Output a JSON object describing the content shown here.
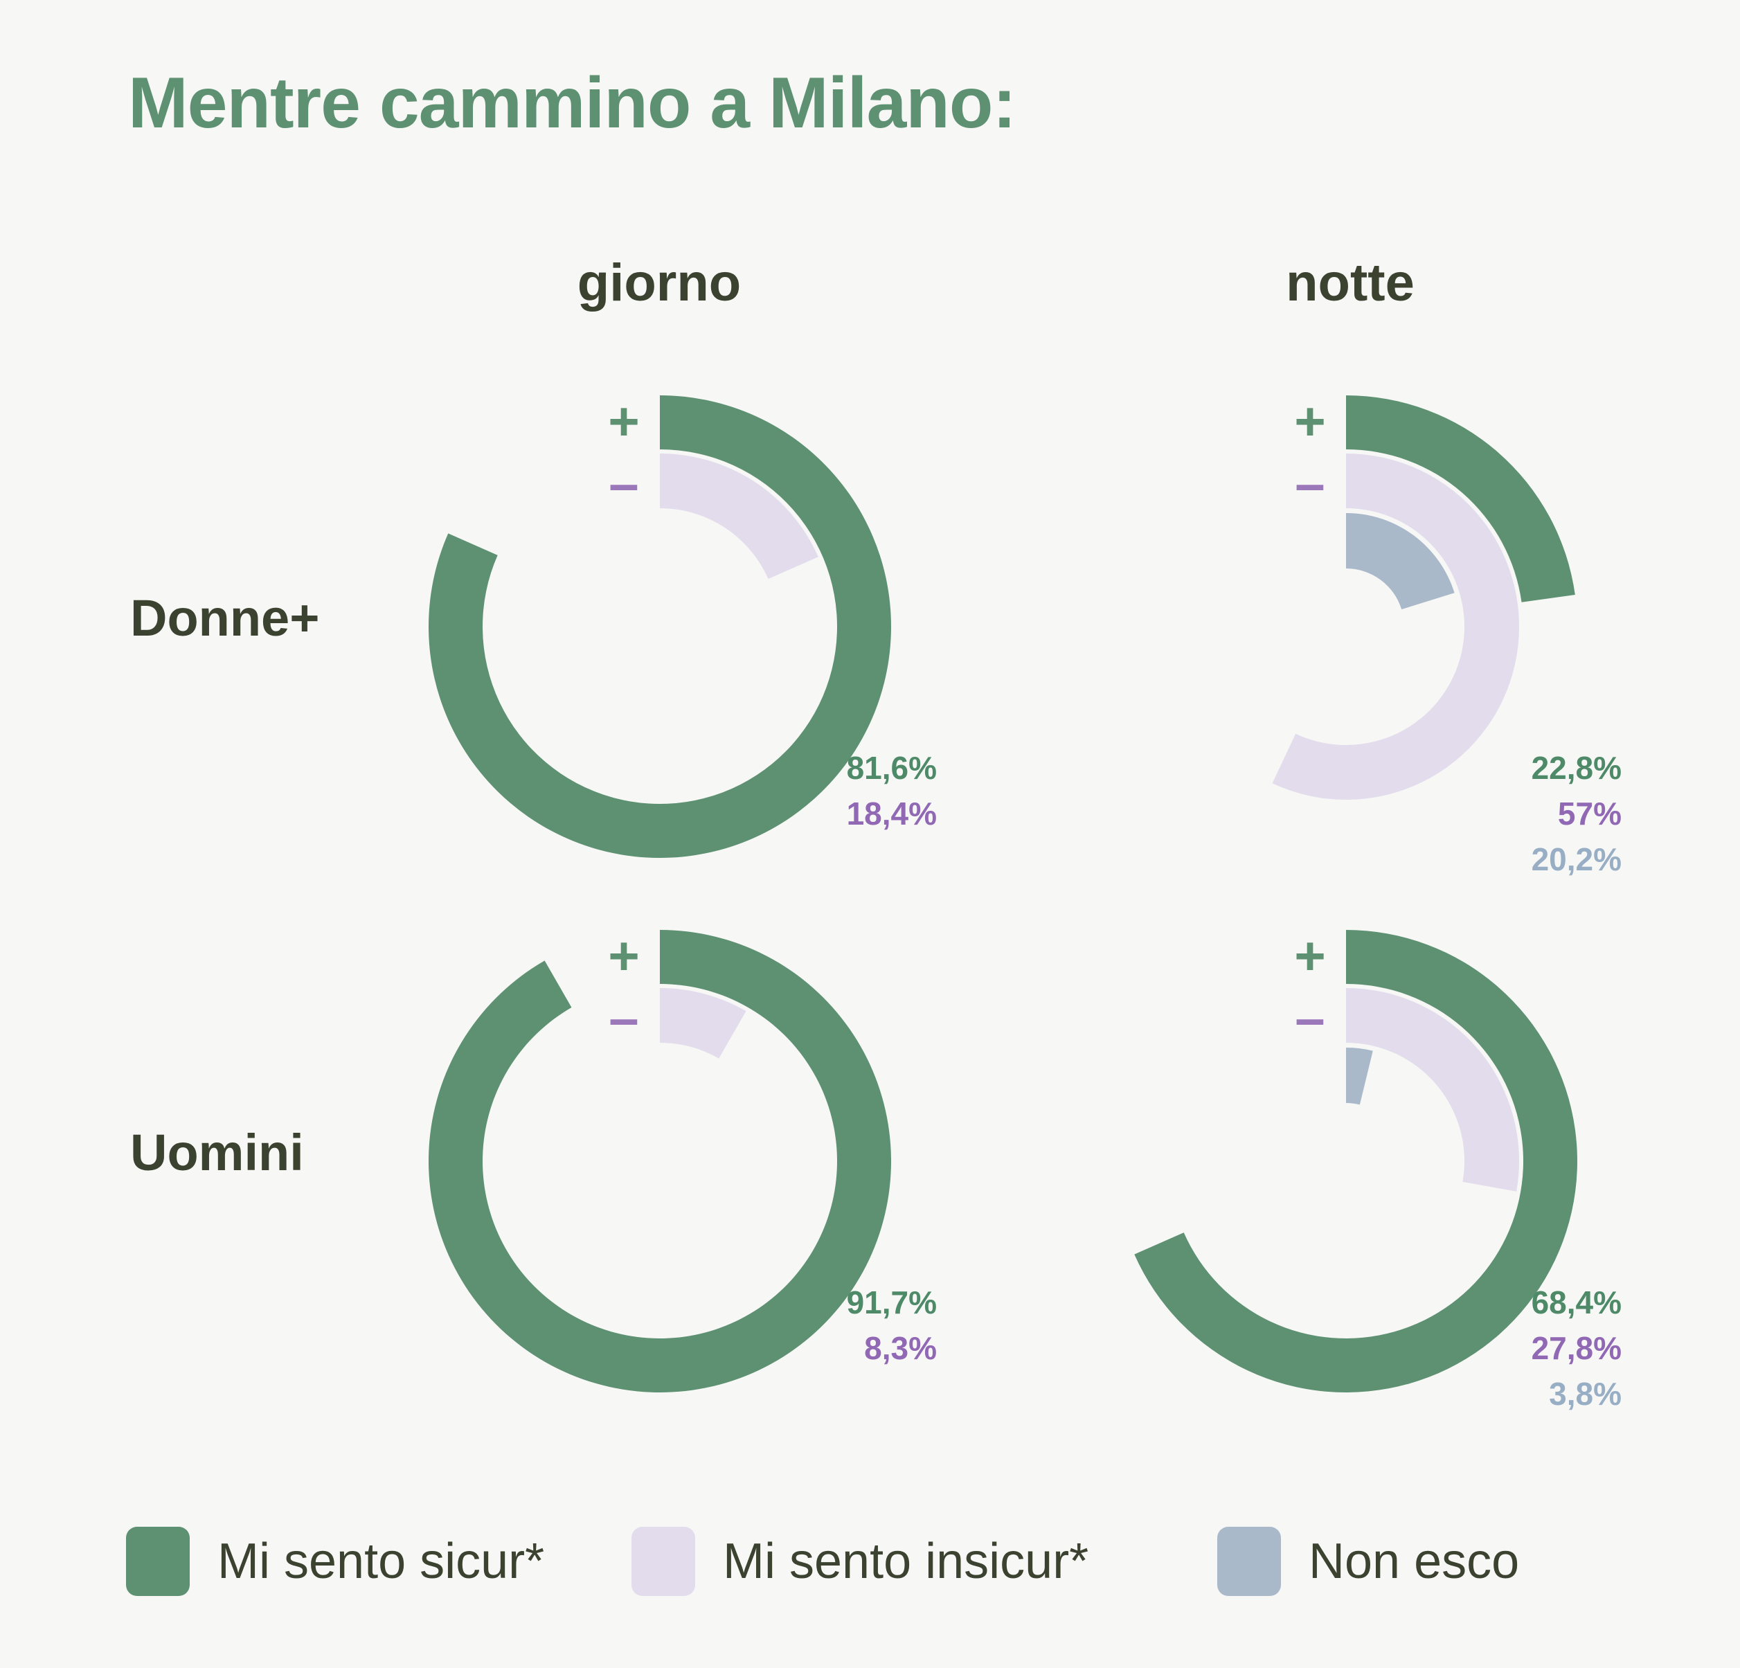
{
  "title": "Mentre cammino a Milano:",
  "columns": [
    "giorno",
    "notte"
  ],
  "rows": [
    "Donne+",
    "Uomini"
  ],
  "sign_plus": "+",
  "sign_minus": "–",
  "colors": {
    "sicuro": "#5d9172",
    "insicuro": "#e3dcec",
    "non_esco": "#a9b9ca",
    "sicuro_text": "#4e8a68",
    "insicuro_text": "#9068b4",
    "non_esco_text": "#98aec5",
    "minus_sign": "#9a78ba"
  },
  "legend": [
    {
      "label": "Mi sento sicur*",
      "color": "#5d9172"
    },
    {
      "label": "Mi sento insicur*",
      "color": "#e3dcec"
    },
    {
      "label": "Non esco",
      "color": "#a9b9ca"
    }
  ],
  "chart_data": [
    {
      "type": "radial-bar",
      "row": "Donne+",
      "column": "giorno",
      "series": [
        {
          "name": "Mi sento sicur*",
          "value": 81.6,
          "label": "81,6%"
        },
        {
          "name": "Mi sento insicur*",
          "value": 18.4,
          "label": "18,4%"
        }
      ]
    },
    {
      "type": "radial-bar",
      "row": "Donne+",
      "column": "notte",
      "series": [
        {
          "name": "Mi sento sicur*",
          "value": 22.8,
          "label": "22,8%"
        },
        {
          "name": "Mi sento insicur*",
          "value": 57,
          "label": "57%"
        },
        {
          "name": "Non esco",
          "value": 20.2,
          "label": "20,2%"
        }
      ]
    },
    {
      "type": "radial-bar",
      "row": "Uomini",
      "column": "giorno",
      "series": [
        {
          "name": "Mi sento sicur*",
          "value": 91.7,
          "label": "91,7%"
        },
        {
          "name": "Mi sento insicur*",
          "value": 8.3,
          "label": "8,3%"
        }
      ]
    },
    {
      "type": "radial-bar",
      "row": "Uomini",
      "column": "notte",
      "series": [
        {
          "name": "Mi sento sicur*",
          "value": 68.4,
          "label": "68,4%"
        },
        {
          "name": "Mi sento insicur*",
          "value": 27.8,
          "label": "27,8%"
        },
        {
          "name": "Non esco",
          "value": 3.8,
          "label": "3,8%"
        }
      ]
    }
  ]
}
